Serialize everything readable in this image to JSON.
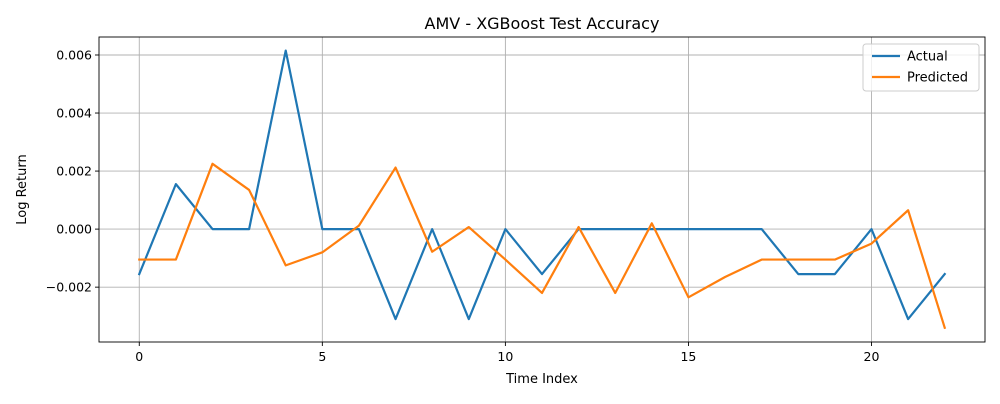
{
  "chart_data": {
    "type": "line",
    "title": "AMV - XGBoost Test Accuracy",
    "xlabel": "Time Index",
    "ylabel": "Log Return",
    "x": [
      0,
      1,
      2,
      3,
      4,
      5,
      6,
      7,
      8,
      9,
      10,
      11,
      12,
      13,
      14,
      15,
      16,
      17,
      18,
      19,
      20,
      21,
      22
    ],
    "xlim": [
      -1.1,
      23.1
    ],
    "ylim": [
      -0.00389,
      0.00662
    ],
    "xticks": [
      0,
      5,
      10,
      15,
      20
    ],
    "xtick_labels": [
      "0",
      "5",
      "10",
      "15",
      "20"
    ],
    "yticks": [
      -0.002,
      0.0,
      0.002,
      0.004,
      0.006
    ],
    "ytick_labels": [
      "−0.002",
      "0.000",
      "0.002",
      "0.004",
      "0.006"
    ],
    "grid": true,
    "legend_position": "top-right",
    "series": [
      {
        "name": "Actual",
        "color": "#1f77b4",
        "values": [
          -0.00155,
          0.00155,
          0.0,
          0.0,
          0.00615,
          0.0,
          0.0,
          -0.0031,
          0.0,
          -0.0031,
          0.0,
          -0.00155,
          0.0,
          0.0,
          0.0,
          0.0,
          0.0,
          0.0,
          -0.00155,
          -0.00155,
          0.0,
          -0.0031,
          -0.00155
        ]
      },
      {
        "name": "Predicted",
        "color": "#ff7f0e",
        "values": [
          -0.00105,
          -0.00105,
          0.00225,
          0.00135,
          -0.00125,
          -0.0008,
          0.00012,
          0.00212,
          -0.00078,
          7e-05,
          -0.00105,
          -0.0022,
          7e-05,
          -0.0022,
          0.0002,
          -0.00235,
          -0.00165,
          -0.00105,
          -0.00105,
          -0.00105,
          -0.0005,
          0.00065,
          -0.0034
        ]
      }
    ]
  }
}
